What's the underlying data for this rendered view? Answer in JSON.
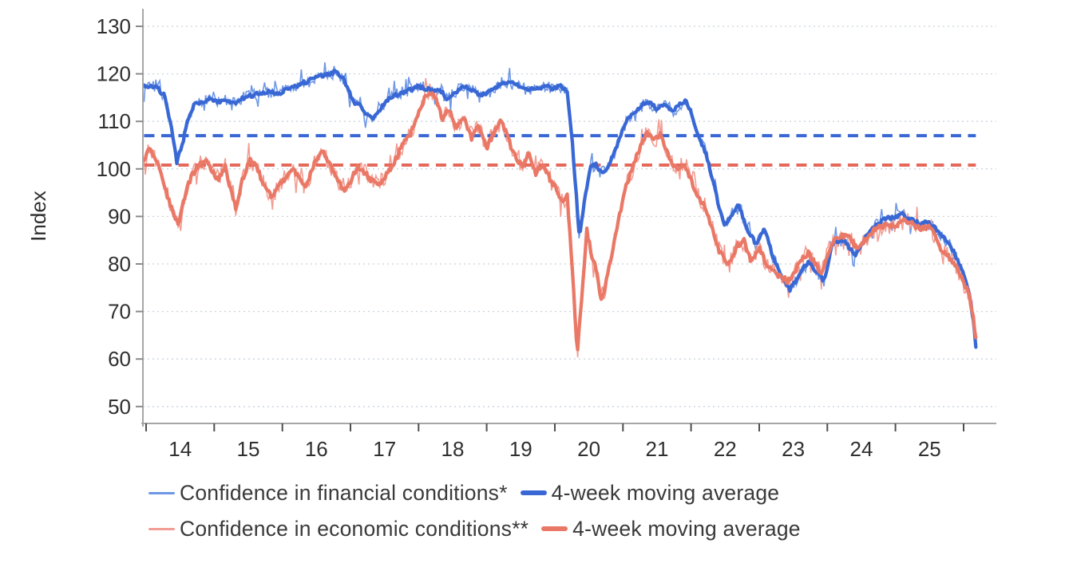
{
  "chart_data": {
    "type": "line",
    "title": "",
    "ylabel": "Index",
    "frequency": "weekly",
    "x_start": 2013.97,
    "x_end": 2026.18,
    "xlim": [
      2013.93,
      2026.48
    ],
    "ylim": [
      46,
      134
    ],
    "y_ticks": [
      50,
      60,
      70,
      80,
      90,
      100,
      110,
      120,
      130
    ],
    "x_tick_years": [
      2014,
      2015,
      2016,
      2017,
      2018,
      2019,
      2020,
      2021,
      2022,
      2023,
      2024,
      2025,
      2026
    ],
    "x_tick_labels": [
      "14",
      "15",
      "16",
      "17",
      "18",
      "19",
      "20",
      "21",
      "22",
      "23",
      "24",
      "25"
    ],
    "grid": {
      "horizontal": true,
      "style": "dotted"
    },
    "grid_color": "#c9d3dc",
    "axis_color": "#a6a6a6",
    "tick_color": "#4f4f4f",
    "y_tick_color": "#8a8a8a",
    "text_color": "#303030",
    "series": [
      {
        "id": "financial",
        "label": "Confidence in financial conditions*",
        "ma_label": "4-week moving average",
        "raw_color": "#6e97e6",
        "ma_color": "#3968d5",
        "average_line": {
          "value": 107.0,
          "color": "#3968d5",
          "style": "dashed"
        },
        "noise_amplitude": 1.4,
        "ma_points": [
          [
            2013.96,
            117.2
          ],
          [
            2014.08,
            117.6
          ],
          [
            2014.18,
            116.8
          ],
          [
            2014.28,
            115.2
          ],
          [
            2014.36,
            109.5
          ],
          [
            2014.45,
            101.5
          ],
          [
            2014.52,
            104.5
          ],
          [
            2014.6,
            109.5
          ],
          [
            2014.7,
            113.3
          ],
          [
            2014.82,
            114.2
          ],
          [
            2014.95,
            114.8
          ],
          [
            2015.05,
            113.9
          ],
          [
            2015.18,
            114.4
          ],
          [
            2015.3,
            113.6
          ],
          [
            2015.42,
            114.9
          ],
          [
            2015.55,
            115.4
          ],
          [
            2015.7,
            116.0
          ],
          [
            2015.85,
            116.2
          ],
          [
            2015.95,
            115.9
          ],
          [
            2016.08,
            116.9
          ],
          [
            2016.2,
            117.4
          ],
          [
            2016.35,
            118.3
          ],
          [
            2016.5,
            119.3
          ],
          [
            2016.65,
            119.9
          ],
          [
            2016.78,
            120.4
          ],
          [
            2016.88,
            119.3
          ],
          [
            2016.98,
            116.5
          ],
          [
            2017.06,
            113.2
          ],
          [
            2017.12,
            114.0
          ],
          [
            2017.22,
            111.6
          ],
          [
            2017.32,
            110.4
          ],
          [
            2017.42,
            112.0
          ],
          [
            2017.52,
            114.2
          ],
          [
            2017.62,
            115.4
          ],
          [
            2017.75,
            116.0
          ],
          [
            2017.9,
            116.8
          ],
          [
            2018.0,
            117.4
          ],
          [
            2018.1,
            116.9
          ],
          [
            2018.22,
            116.3
          ],
          [
            2018.32,
            116.7
          ],
          [
            2018.42,
            114.7
          ],
          [
            2018.55,
            116.1
          ],
          [
            2018.68,
            117.6
          ],
          [
            2018.8,
            116.4
          ],
          [
            2018.9,
            115.3
          ],
          [
            2019.02,
            116.1
          ],
          [
            2019.15,
            117.4
          ],
          [
            2019.28,
            118.4
          ],
          [
            2019.4,
            117.8
          ],
          [
            2019.52,
            117.1
          ],
          [
            2019.62,
            116.5
          ],
          [
            2019.75,
            117.1
          ],
          [
            2019.88,
            117.3
          ],
          [
            2019.98,
            116.9
          ],
          [
            2020.08,
            117.4
          ],
          [
            2020.18,
            116.5
          ],
          [
            2020.26,
            105.0
          ],
          [
            2020.36,
            85.5
          ],
          [
            2020.44,
            93.5
          ],
          [
            2020.52,
            100.4
          ],
          [
            2020.6,
            100.9
          ],
          [
            2020.68,
            99.2
          ],
          [
            2020.78,
            100.3
          ],
          [
            2020.88,
            103.6
          ],
          [
            2020.98,
            107.6
          ],
          [
            2021.08,
            110.6
          ],
          [
            2021.18,
            112.2
          ],
          [
            2021.3,
            113.6
          ],
          [
            2021.4,
            114.1
          ],
          [
            2021.5,
            112.6
          ],
          [
            2021.62,
            113.8
          ],
          [
            2021.72,
            112.1
          ],
          [
            2021.82,
            113.3
          ],
          [
            2021.92,
            114.7
          ],
          [
            2022.02,
            111.0
          ],
          [
            2022.12,
            106.5
          ],
          [
            2022.22,
            103.3
          ],
          [
            2022.32,
            97.5
          ],
          [
            2022.42,
            91.5
          ],
          [
            2022.5,
            88.0
          ],
          [
            2022.6,
            90.5
          ],
          [
            2022.7,
            92.3
          ],
          [
            2022.82,
            87.5
          ],
          [
            2022.95,
            84.2
          ],
          [
            2023.08,
            87.6
          ],
          [
            2023.2,
            81.5
          ],
          [
            2023.32,
            77.5
          ],
          [
            2023.45,
            74.5
          ],
          [
            2023.58,
            77.5
          ],
          [
            2023.72,
            80.6
          ],
          [
            2023.85,
            78.0
          ],
          [
            2023.95,
            76.4
          ],
          [
            2024.08,
            84.5
          ],
          [
            2024.25,
            85.2
          ],
          [
            2024.4,
            81.8
          ],
          [
            2024.55,
            85.5
          ],
          [
            2024.68,
            87.5
          ],
          [
            2024.82,
            89.3
          ],
          [
            2024.95,
            89.8
          ],
          [
            2025.1,
            90.5
          ],
          [
            2025.2,
            89.5
          ],
          [
            2025.35,
            88.5
          ],
          [
            2025.5,
            88.7
          ],
          [
            2025.62,
            87.0
          ],
          [
            2025.75,
            85.0
          ],
          [
            2025.88,
            82.0
          ],
          [
            2026.0,
            78.0
          ],
          [
            2026.08,
            74.0
          ],
          [
            2026.14,
            68.5
          ],
          [
            2026.18,
            62.5
          ]
        ]
      },
      {
        "id": "economic",
        "label": "Confidence in economic conditions**",
        "ma_label": "4-week moving average",
        "raw_color": "#f29d93",
        "ma_color": "#ea7866",
        "average_line": {
          "value": 100.8,
          "color": "#e5695b",
          "style": "dashed"
        },
        "noise_amplitude": 1.9,
        "ma_points": [
          [
            2013.96,
            102.0
          ],
          [
            2014.05,
            104.3
          ],
          [
            2014.12,
            103.0
          ],
          [
            2014.2,
            100.5
          ],
          [
            2014.3,
            95.0
          ],
          [
            2014.42,
            89.5
          ],
          [
            2014.48,
            88.5
          ],
          [
            2014.58,
            95.0
          ],
          [
            2014.68,
            99.0
          ],
          [
            2014.78,
            100.8
          ],
          [
            2014.88,
            101.5
          ],
          [
            2014.98,
            99.4
          ],
          [
            2015.06,
            97.6
          ],
          [
            2015.16,
            100.6
          ],
          [
            2015.24,
            95.5
          ],
          [
            2015.32,
            91.8
          ],
          [
            2015.42,
            98.0
          ],
          [
            2015.52,
            101.8
          ],
          [
            2015.62,
            100.5
          ],
          [
            2015.72,
            97.0
          ],
          [
            2015.84,
            94.2
          ],
          [
            2015.95,
            96.5
          ],
          [
            2016.05,
            98.2
          ],
          [
            2016.15,
            100.2
          ],
          [
            2016.25,
            98.0
          ],
          [
            2016.35,
            96.0
          ],
          [
            2016.45,
            100.5
          ],
          [
            2016.58,
            104.0
          ],
          [
            2016.68,
            101.5
          ],
          [
            2016.78,
            98.2
          ],
          [
            2016.9,
            95.5
          ],
          [
            2017.0,
            97.5
          ],
          [
            2017.1,
            100.3
          ],
          [
            2017.18,
            99.8
          ],
          [
            2017.28,
            98.0
          ],
          [
            2017.38,
            96.8
          ],
          [
            2017.48,
            97.5
          ],
          [
            2017.58,
            100.0
          ],
          [
            2017.68,
            102.5
          ],
          [
            2017.78,
            105.5
          ],
          [
            2017.88,
            107.5
          ],
          [
            2017.98,
            111.0
          ],
          [
            2018.08,
            114.5
          ],
          [
            2018.16,
            116.4
          ],
          [
            2018.25,
            114.8
          ],
          [
            2018.35,
            110.5
          ],
          [
            2018.45,
            112.5
          ],
          [
            2018.55,
            108.5
          ],
          [
            2018.65,
            111.0
          ],
          [
            2018.78,
            106.5
          ],
          [
            2018.88,
            109.5
          ],
          [
            2019.0,
            104.5
          ],
          [
            2019.1,
            107.5
          ],
          [
            2019.22,
            110.3
          ],
          [
            2019.32,
            106.0
          ],
          [
            2019.42,
            102.5
          ],
          [
            2019.52,
            100.5
          ],
          [
            2019.62,
            103.3
          ],
          [
            2019.72,
            99.2
          ],
          [
            2019.82,
            100.8
          ],
          [
            2019.92,
            98.0
          ],
          [
            2020.02,
            95.8
          ],
          [
            2020.1,
            93.0
          ],
          [
            2020.18,
            94.5
          ],
          [
            2020.26,
            78.0
          ],
          [
            2020.33,
            61.0
          ],
          [
            2020.4,
            74.0
          ],
          [
            2020.47,
            87.0
          ],
          [
            2020.54,
            82.0
          ],
          [
            2020.6,
            79.3
          ],
          [
            2020.68,
            72.5
          ],
          [
            2020.76,
            76.5
          ],
          [
            2020.85,
            83.0
          ],
          [
            2020.95,
            90.5
          ],
          [
            2021.05,
            96.5
          ],
          [
            2021.15,
            100.5
          ],
          [
            2021.25,
            104.5
          ],
          [
            2021.35,
            107.8
          ],
          [
            2021.45,
            106.0
          ],
          [
            2021.55,
            107.4
          ],
          [
            2021.65,
            103.5
          ],
          [
            2021.72,
            101.0
          ],
          [
            2021.8,
            100.2
          ],
          [
            2021.9,
            101.3
          ],
          [
            2022.0,
            97.5
          ],
          [
            2022.1,
            94.5
          ],
          [
            2022.2,
            92.0
          ],
          [
            2022.3,
            88.0
          ],
          [
            2022.42,
            82.5
          ],
          [
            2022.55,
            79.5
          ],
          [
            2022.68,
            84.0
          ],
          [
            2022.78,
            84.8
          ],
          [
            2022.88,
            80.8
          ],
          [
            2023.0,
            83.3
          ],
          [
            2023.12,
            79.5
          ],
          [
            2023.25,
            78.0
          ],
          [
            2023.42,
            76.3
          ],
          [
            2023.58,
            80.0
          ],
          [
            2023.72,
            82.5
          ],
          [
            2023.82,
            80.0
          ],
          [
            2023.92,
            78.0
          ],
          [
            2024.05,
            84.0
          ],
          [
            2024.2,
            86.0
          ],
          [
            2024.32,
            85.8
          ],
          [
            2024.45,
            82.8
          ],
          [
            2024.58,
            85.5
          ],
          [
            2024.7,
            87.5
          ],
          [
            2024.85,
            88.0
          ],
          [
            2025.0,
            88.3
          ],
          [
            2025.15,
            89.3
          ],
          [
            2025.28,
            88.0
          ],
          [
            2025.4,
            87.5
          ],
          [
            2025.52,
            87.8
          ],
          [
            2025.65,
            83.3
          ],
          [
            2025.78,
            81.5
          ],
          [
            2025.9,
            79.5
          ],
          [
            2026.0,
            76.5
          ],
          [
            2026.08,
            73.5
          ],
          [
            2026.14,
            69.5
          ],
          [
            2026.17,
            64.5
          ]
        ]
      }
    ]
  }
}
